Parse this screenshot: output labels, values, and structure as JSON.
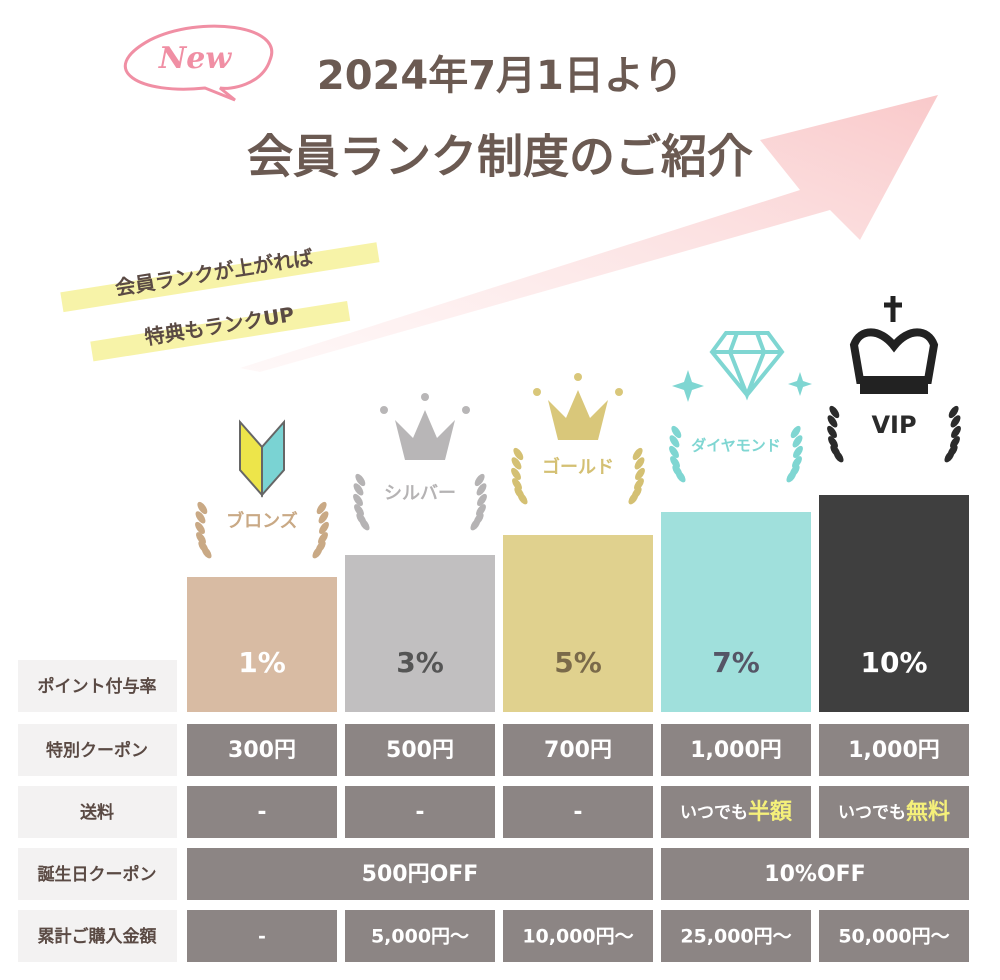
{
  "header": {
    "badge": "New",
    "date": "2024年7月1日より",
    "title": "会員ランク制度のご紹介"
  },
  "tagline": [
    "会員ランクが上がれば",
    "特典もランクUP"
  ],
  "ranks": [
    "ブロンズ",
    "シルバー",
    "ゴールド",
    "ダイヤモンド",
    "VIP"
  ],
  "table": {
    "rows": [
      {
        "label": "ポイント付与率",
        "cells": [
          "1%",
          "3%",
          "5%",
          "7%",
          "10%"
        ]
      },
      {
        "label": "特別クーポン",
        "cells": [
          "300円",
          "500円",
          "700円",
          "1,000円",
          "1,000円"
        ]
      },
      {
        "label": "送料",
        "cells": [
          "-",
          "-",
          "-",
          {
            "text": "いつでも",
            "highlight": "半額"
          },
          {
            "text": "いつでも",
            "highlight": "無料"
          }
        ]
      },
      {
        "label": "誕生日クーポン",
        "cells": [
          "500円OFF",
          "10%OFF"
        ]
      },
      {
        "label": "累計ご購入金額",
        "cells": [
          "-",
          "5,000円〜",
          "10,000円〜",
          "25,000円〜",
          "50,000円〜"
        ]
      }
    ]
  }
}
